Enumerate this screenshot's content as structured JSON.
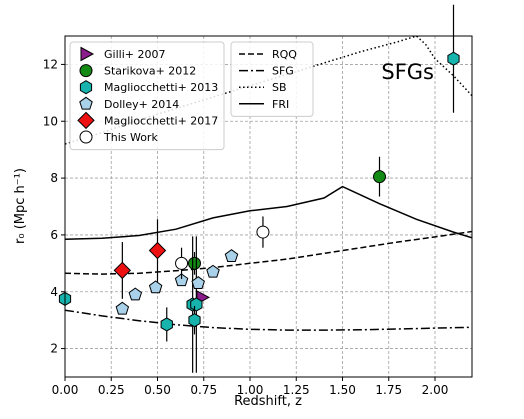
{
  "chart_data": {
    "type": "scatter",
    "xlabel": "Redshift, z",
    "ylabel": "r₀ (Mpc h⁻¹)",
    "annotation": "SFGs",
    "xlim": [
      0.0,
      2.2
    ],
    "ylim": [
      1.0,
      13.0
    ],
    "xticks": [
      "0.00",
      "0.25",
      "0.50",
      "0.75",
      "1.00",
      "1.25",
      "1.50",
      "1.75",
      "2.00"
    ],
    "yticks": [
      "2",
      "4",
      "6",
      "8",
      "10",
      "12"
    ],
    "grid": true,
    "legend_placement": "top-left",
    "scatter_series": [
      {
        "name": "Gilli+ 2007",
        "marker": "triangle-right",
        "color": "#8b1c8b",
        "points": [
          {
            "x": 0.74,
            "y": 3.8,
            "yerr": 0.0
          }
        ]
      },
      {
        "name": "Starikova+ 2012",
        "marker": "circle",
        "color": "#138a13",
        "points": [
          {
            "x": 0.7,
            "y": 5.0,
            "yerr": 0.4
          },
          {
            "x": 1.7,
            "y": 8.05,
            "yerr": 0.7
          }
        ]
      },
      {
        "name": "Magliocchetti+ 2013",
        "marker": "hexagon",
        "color": "#17b3ad",
        "points": [
          {
            "x": 0.0,
            "y": 3.75,
            "yerr": 0.0
          },
          {
            "x": 0.55,
            "y": 2.85,
            "yerr": 0.6
          },
          {
            "x": 0.69,
            "y": 3.55,
            "yerr": 2.4
          },
          {
            "x": 0.71,
            "y": 3.55,
            "yerr": 2.4
          },
          {
            "x": 0.7,
            "y": 3.0,
            "yerr": 0.5
          },
          {
            "x": 2.1,
            "y": 12.2,
            "yerr": 1.9
          }
        ]
      },
      {
        "name": "Dolley+ 2014",
        "marker": "pentagon",
        "color": "#a9d2ea",
        "points": [
          {
            "x": 0.31,
            "y": 3.4,
            "yerr": 0.0
          },
          {
            "x": 0.38,
            "y": 3.9,
            "yerr": 0.0
          },
          {
            "x": 0.49,
            "y": 4.15,
            "yerr": 0.0
          },
          {
            "x": 0.63,
            "y": 4.4,
            "yerr": 0.0
          },
          {
            "x": 0.72,
            "y": 4.3,
            "yerr": 0.0
          },
          {
            "x": 0.8,
            "y": 4.7,
            "yerr": 0.0
          },
          {
            "x": 0.9,
            "y": 5.25,
            "yerr": 0.0
          }
        ]
      },
      {
        "name": "Magliocchetti+ 2017",
        "marker": "diamond",
        "color": "#ee1111",
        "points": [
          {
            "x": 0.31,
            "y": 4.75,
            "yerr": 1.0
          },
          {
            "x": 0.5,
            "y": 5.45,
            "yerr": 1.1
          }
        ]
      },
      {
        "name": "This Work",
        "marker": "open-circle",
        "color": "#000000",
        "points": [
          {
            "x": 0.63,
            "y": 5.0,
            "yerr": 0.55
          },
          {
            "x": 1.07,
            "y": 6.1,
            "yerr": 0.55
          }
        ]
      }
    ],
    "line_series": [
      {
        "name": "RQQ",
        "style": "dashed",
        "points": [
          [
            0.0,
            4.65
          ],
          [
            0.2,
            4.62
          ],
          [
            0.4,
            4.65
          ],
          [
            0.6,
            4.74
          ],
          [
            0.8,
            4.85
          ],
          [
            1.0,
            5.0
          ],
          [
            1.2,
            5.15
          ],
          [
            1.4,
            5.35
          ],
          [
            1.6,
            5.55
          ],
          [
            1.8,
            5.75
          ],
          [
            2.0,
            5.93
          ],
          [
            2.2,
            6.12
          ]
        ]
      },
      {
        "name": "SFG",
        "style": "dashdot",
        "points": [
          [
            0.0,
            3.35
          ],
          [
            0.2,
            3.15
          ],
          [
            0.4,
            2.98
          ],
          [
            0.6,
            2.84
          ],
          [
            0.8,
            2.74
          ],
          [
            1.0,
            2.68
          ],
          [
            1.2,
            2.65
          ],
          [
            1.4,
            2.65
          ],
          [
            1.6,
            2.66
          ],
          [
            1.8,
            2.69
          ],
          [
            2.0,
            2.72
          ],
          [
            2.2,
            2.75
          ]
        ]
      },
      {
        "name": "SB",
        "style": "dotted",
        "points": [
          [
            0.0,
            9.2
          ],
          [
            0.2,
            9.6
          ],
          [
            0.4,
            10.05
          ],
          [
            0.6,
            10.45
          ],
          [
            0.8,
            10.85
          ],
          [
            1.0,
            11.25
          ],
          [
            1.2,
            11.65
          ],
          [
            1.4,
            12.05
          ],
          [
            1.6,
            12.45
          ],
          [
            1.8,
            12.8
          ],
          [
            1.9,
            13.0
          ],
          [
            1.95,
            12.7
          ],
          [
            2.0,
            12.2
          ],
          [
            2.1,
            11.6
          ],
          [
            2.2,
            10.9
          ]
        ]
      },
      {
        "name": "FRI",
        "style": "solid",
        "points": [
          [
            0.0,
            5.85
          ],
          [
            0.2,
            5.88
          ],
          [
            0.4,
            5.98
          ],
          [
            0.6,
            6.2
          ],
          [
            0.8,
            6.6
          ],
          [
            1.0,
            6.85
          ],
          [
            1.2,
            7.0
          ],
          [
            1.4,
            7.3
          ],
          [
            1.5,
            7.7
          ],
          [
            1.7,
            7.1
          ],
          [
            1.9,
            6.55
          ],
          [
            2.1,
            6.1
          ],
          [
            2.2,
            5.9
          ]
        ]
      }
    ]
  }
}
